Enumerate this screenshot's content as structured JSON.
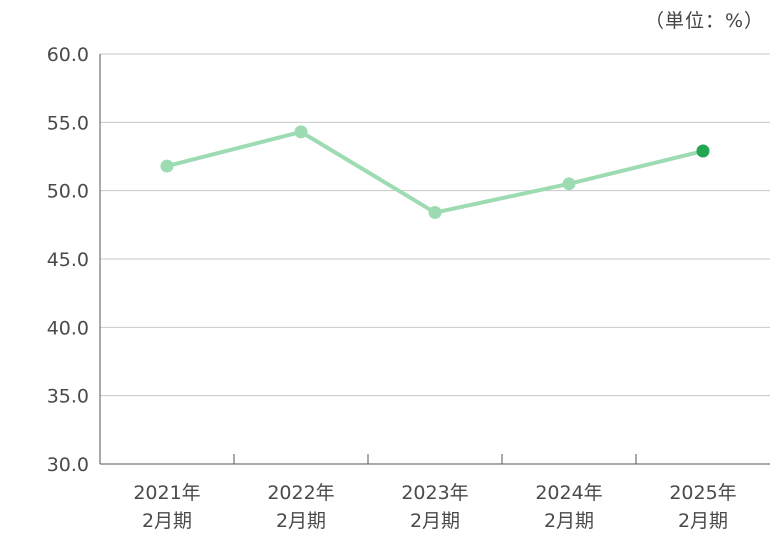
{
  "unit_label": "（単位：%）",
  "chart_data": {
    "type": "line",
    "categories": [
      [
        "2021年",
        "2月期"
      ],
      [
        "2022年",
        "2月期"
      ],
      [
        "2023年",
        "2月期"
      ],
      [
        "2024年",
        "2月期"
      ],
      [
        "2025年",
        "2月期"
      ]
    ],
    "series": [
      {
        "values": [
          51.8,
          54.3,
          48.4,
          50.5,
          52.9
        ]
      }
    ],
    "ylim": [
      30,
      60
    ],
    "yticks": [
      "30.0",
      "35.0",
      "40.0",
      "45.0",
      "50.0",
      "55.0",
      "60.0"
    ],
    "grid": true,
    "colors": {
      "line": "#9ddbb2",
      "point": "#9ddbb2",
      "highlight_point": "#22a652",
      "grid": "#c8c8c8",
      "axis": "#555555"
    }
  }
}
